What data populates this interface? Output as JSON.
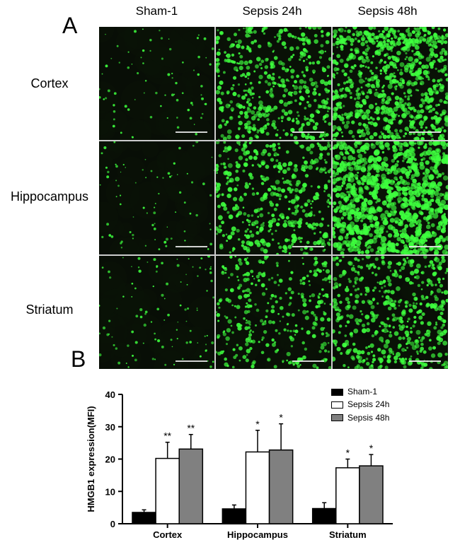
{
  "figure": {
    "panel_A_label": "A",
    "panel_B_label": "B",
    "columns": [
      "Sham-1",
      "Sepsis 24h",
      "Sepsis 48h"
    ],
    "rows": [
      "Cortex",
      "Hippocampus",
      "Striatum"
    ],
    "micrograph_bg": "#080e06",
    "fluor_color": "#3eff3e",
    "grid": [
      {
        "row": 0,
        "col": 0,
        "density": 0.003,
        "spot_r": 1.2
      },
      {
        "row": 0,
        "col": 1,
        "density": 0.017,
        "spot_r": 2.0
      },
      {
        "row": 0,
        "col": 2,
        "density": 0.028,
        "spot_r": 2.2
      },
      {
        "row": 1,
        "col": 0,
        "density": 0.003,
        "spot_r": 1.2
      },
      {
        "row": 1,
        "col": 1,
        "density": 0.016,
        "spot_r": 2.1
      },
      {
        "row": 1,
        "col": 2,
        "density": 0.034,
        "spot_r": 2.5
      },
      {
        "row": 2,
        "col": 0,
        "density": 0.004,
        "spot_r": 1.3
      },
      {
        "row": 2,
        "col": 1,
        "density": 0.012,
        "spot_r": 1.9
      },
      {
        "row": 2,
        "col": 2,
        "density": 0.018,
        "spot_r": 2.1
      }
    ],
    "scale_bar_color": "#e8e8e8"
  },
  "chart": {
    "type": "grouped-bar",
    "ylabel": "HMGB1 expression(MFI)",
    "ylabel_fontsize": 13,
    "ylabel_fontweight": "bold",
    "ylim": [
      0,
      40
    ],
    "ytick_step": 10,
    "yticks": [
      0,
      10,
      20,
      30,
      40
    ],
    "tick_fontsize": 13,
    "categories": [
      "Cortex",
      "Hippocampus",
      "Striatum"
    ],
    "xlabel_fontsize": 13,
    "legend_items": [
      {
        "label": "Sham-1",
        "color": "#000000"
      },
      {
        "label": "Sepsis 24h",
        "color": "#ffffff"
      },
      {
        "label": "Sepsis 48h",
        "color": "#808080"
      }
    ],
    "series": [
      {
        "name": "Sham-1",
        "color": "#000000",
        "values": [
          3.5,
          4.6,
          4.7
        ],
        "errors": [
          0.8,
          1.2,
          1.8
        ],
        "sig": [
          "",
          "",
          ""
        ]
      },
      {
        "name": "Sepsis 24h",
        "color": "#ffffff",
        "values": [
          20.2,
          22.2,
          17.3
        ],
        "errors": [
          5.0,
          6.7,
          2.7
        ],
        "sig": [
          "**",
          "*",
          "*"
        ]
      },
      {
        "name": "Sepsis 48h",
        "color": "#808080",
        "values": [
          23.1,
          22.8,
          17.9
        ],
        "errors": [
          4.5,
          8.1,
          3.5
        ],
        "sig": [
          "**",
          "*",
          "*"
        ]
      }
    ],
    "bar_width": 0.26,
    "group_gap": 0.22,
    "stroke": "#000000",
    "stroke_width": 1.5,
    "error_cap": 6,
    "sig_fontsize": 14,
    "plot_bg": "#ffffff",
    "axis_color": "#000000"
  }
}
